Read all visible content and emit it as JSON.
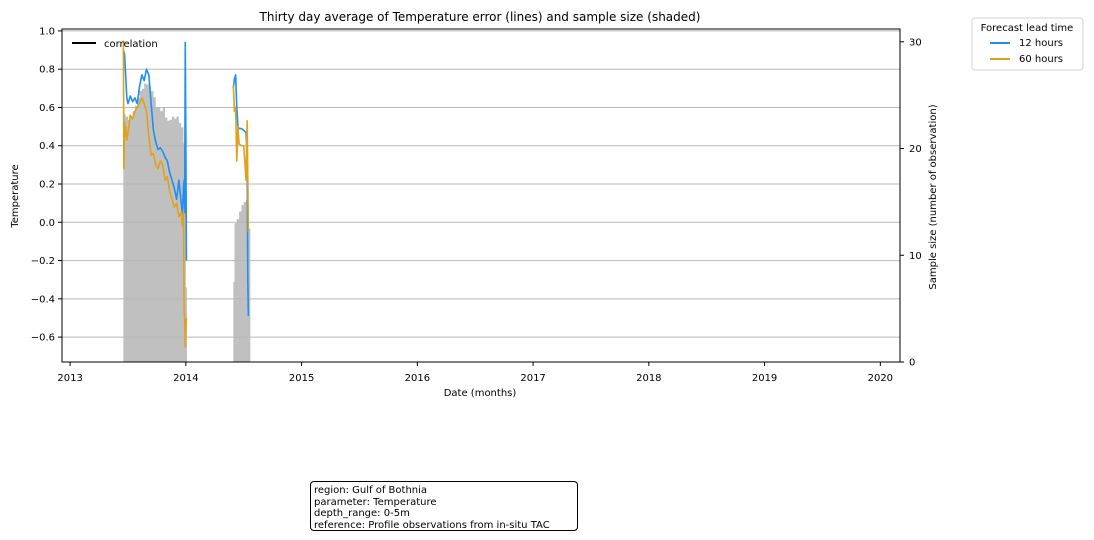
{
  "chart_data": {
    "type": "line",
    "title": "Thirty day average of Temperature error (lines) and sample size (shaded)",
    "xlabel": "Date (months)",
    "ylabel": "Temperature",
    "y2label": "Sample size (number of observation)",
    "xlim": [
      2012.93,
      2020.17
    ],
    "ylim": [
      -0.73,
      1.01
    ],
    "y2lim": [
      0,
      31.2
    ],
    "x_ticks": [
      2013,
      2014,
      2015,
      2016,
      2017,
      2018,
      2019,
      2020
    ],
    "x_tick_labels": [
      "2013",
      "2014",
      "2015",
      "2016",
      "2017",
      "2018",
      "2019",
      "2020"
    ],
    "y_ticks": [
      -0.6,
      -0.4,
      -0.2,
      0.0,
      0.2,
      0.4,
      0.6,
      0.8,
      1.0
    ],
    "y_tick_labels": [
      "−0.6",
      "−0.4",
      "−0.2",
      "0.0",
      "0.2",
      "0.4",
      "0.6",
      "0.8",
      "1.0"
    ],
    "y2_ticks": [
      0,
      10,
      20,
      30
    ],
    "y2_tick_labels": [
      "0",
      "10",
      "20",
      "30"
    ],
    "grid": "horizontal",
    "inner_legend": {
      "position": "upper-left",
      "label": "correlation",
      "color": "#000000"
    },
    "legend": {
      "title": "Forecast lead time",
      "position": "outside-top-right",
      "entries": [
        "12 hours",
        "60 hours"
      ]
    },
    "series": [
      {
        "name": "12 hours",
        "color": "#1f8ff0",
        "segments": [
          {
            "x": [
              2013.46,
              2013.47,
              2013.48,
              2013.49,
              2013.5,
              2013.51,
              2013.52,
              2013.54,
              2013.56,
              2013.58,
              2013.6,
              2013.62,
              2013.64,
              2013.66,
              2013.68,
              2013.7,
              2013.71,
              2013.72,
              2013.74,
              2013.76,
              2013.78,
              2013.8,
              2013.82,
              2013.84,
              2013.86,
              2013.88,
              2013.9,
              2013.92,
              2013.94,
              2013.96,
              2013.97,
              2013.98,
              2013.985,
              2013.99,
              2013.995,
              2014.0,
              2014.005
            ],
            "y": [
              0.9,
              0.88,
              0.77,
              0.65,
              0.62,
              0.64,
              0.66,
              0.63,
              0.65,
              0.62,
              0.71,
              0.77,
              0.74,
              0.8,
              0.77,
              0.62,
              0.55,
              0.48,
              0.42,
              0.38,
              0.39,
              0.37,
              0.34,
              0.32,
              0.26,
              0.22,
              0.18,
              0.12,
              0.22,
              0.1,
              0.05,
              0.18,
              0.22,
              0.05,
              0.94,
              0.42,
              -0.2
            ]
          },
          {
            "x": [
              2014.41,
              2014.42,
              2014.43,
              2014.44,
              2014.45,
              2014.46,
              2014.48,
              2014.5,
              2014.52,
              2014.53,
              2014.535,
              2014.54
            ],
            "y": [
              0.7,
              0.75,
              0.77,
              0.6,
              0.5,
              0.49,
              0.49,
              0.48,
              0.47,
              0.33,
              -0.28,
              -0.49
            ]
          }
        ]
      },
      {
        "name": "60 hours",
        "color": "#e0a11b",
        "segments": [
          {
            "x": [
              2013.46,
              2013.465,
              2013.47,
              2013.475,
              2013.48,
              2013.49,
              2013.5,
              2013.52,
              2013.54,
              2013.56,
              2013.58,
              2013.6,
              2013.62,
              2013.64,
              2013.66,
              2013.68,
              2013.7,
              2013.72,
              2013.74,
              2013.76,
              2013.78,
              2013.8,
              2013.82,
              2013.84,
              2013.86,
              2013.88,
              2013.9,
              2013.92,
              2013.94,
              2013.96,
              2013.97,
              2013.98,
              2013.985,
              2013.99,
              2013.995,
              2014.0,
              2014.005
            ],
            "y": [
              0.95,
              0.28,
              0.52,
              0.45,
              0.5,
              0.43,
              0.47,
              0.56,
              0.54,
              0.58,
              0.6,
              0.62,
              0.65,
              0.62,
              0.58,
              0.45,
              0.35,
              0.36,
              0.3,
              0.28,
              0.32,
              0.3,
              0.22,
              0.24,
              0.16,
              0.12,
              0.08,
              0.1,
              0.03,
              0.05,
              -0.02,
              0.06,
              -0.45,
              -0.52,
              -0.65,
              -0.54,
              -0.5
            ]
          },
          {
            "x": [
              2014.41,
              2014.42,
              2014.43,
              2014.44,
              2014.45,
              2014.46,
              2014.48,
              2014.5,
              2014.52,
              2014.53,
              2014.535,
              2014.54
            ],
            "y": [
              0.72,
              0.58,
              0.6,
              0.32,
              0.5,
              0.41,
              0.4,
              0.4,
              0.22,
              0.53,
              0.25,
              -0.05
            ]
          }
        ]
      }
    ],
    "sample_size": {
      "color": "#c0c0c0",
      "segments": [
        {
          "x": [
            2013.46,
            2013.48,
            2013.5,
            2013.52,
            2013.54,
            2013.56,
            2013.58,
            2013.6,
            2013.62,
            2013.64,
            2013.66,
            2013.68,
            2013.7,
            2013.72,
            2013.74,
            2013.76,
            2013.78,
            2013.8,
            2013.82,
            2013.84,
            2013.86,
            2013.88,
            2013.9,
            2013.92,
            2013.94,
            2013.96,
            2013.98,
            2014.0,
            2014.01
          ],
          "y": [
            23.2,
            23.0,
            22.7,
            22.9,
            23.5,
            24.0,
            24.7,
            25.4,
            25.6,
            26.1,
            26.0,
            25.8,
            25.4,
            24.8,
            23.8,
            23.8,
            23.5,
            23.8,
            22.9,
            22.6,
            22.7,
            23.0,
            22.8,
            23.0,
            22.4,
            22.0,
            20.5,
            7.0,
            0
          ]
        },
        {
          "x": [
            2014.41,
            2014.42,
            2014.44,
            2014.46,
            2014.48,
            2014.5,
            2014.52,
            2014.53,
            2014.54
          ],
          "y": [
            7.5,
            13.0,
            13.4,
            14.1,
            14.7,
            15.0,
            15.2,
            15.5,
            12.5
          ]
        }
      ]
    }
  },
  "info_box": {
    "lines": [
      "region: Gulf of Bothnia",
      "parameter: Temperature",
      "depth_range: 0-5m",
      "reference: Profile observations from in-situ TAC"
    ]
  }
}
